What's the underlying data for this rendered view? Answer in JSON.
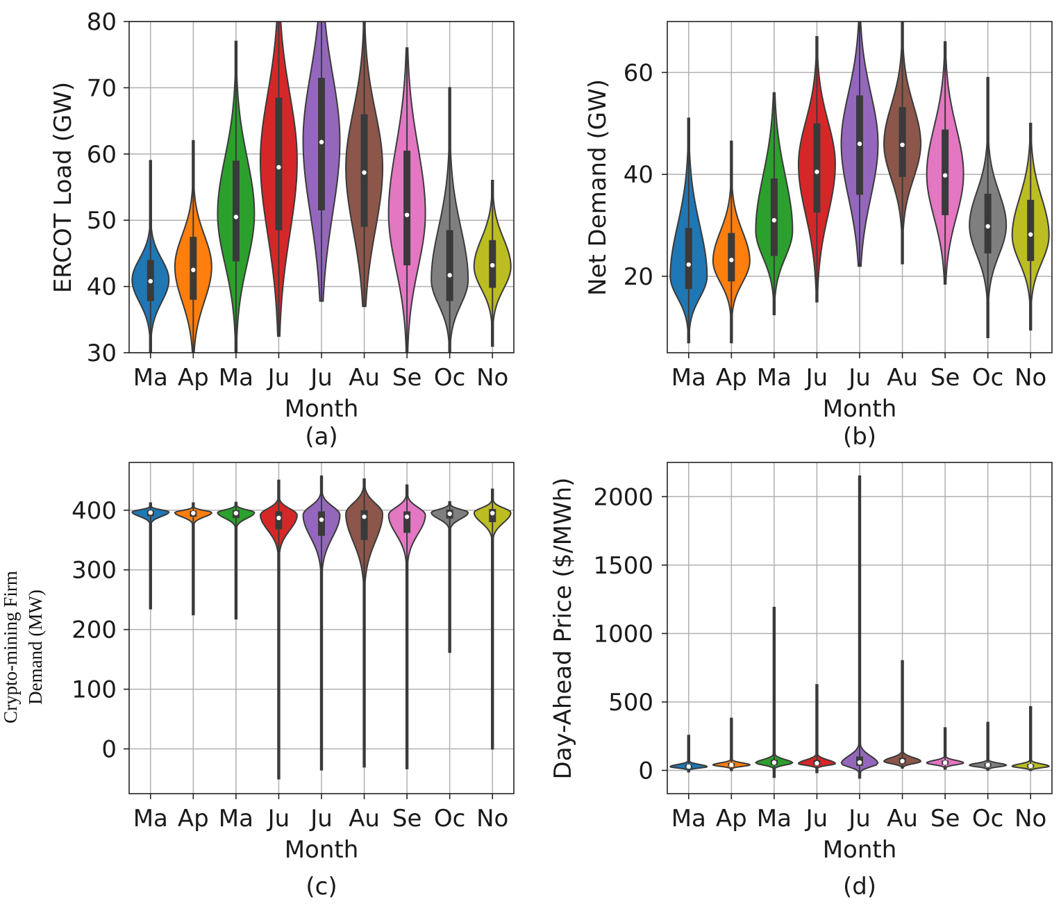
{
  "chart_data": [
    {
      "type": "violin",
      "caption": "(a)",
      "xlabel": "Month",
      "ylabel": "ERCOT Load (GW)",
      "categories": [
        "Ma",
        "Ap",
        "Ma",
        "Ju",
        "Ju",
        "Au",
        "Se",
        "Oc",
        "No"
      ],
      "ylim": [
        30,
        80
      ],
      "yticks": [
        30,
        40,
        50,
        60,
        70,
        80
      ],
      "grid": true,
      "series": [
        {
          "label": "Ma",
          "color": "#1f77b4",
          "min": 29,
          "q1": 37.8,
          "median": 40.8,
          "q3": 44.0,
          "max": 59,
          "mode": 41
        },
        {
          "label": "Ap",
          "color": "#ff7f0e",
          "min": 30,
          "q1": 38.0,
          "median": 42.5,
          "q3": 47.5,
          "max": 62,
          "mode": 43
        },
        {
          "label": "Ma",
          "color": "#2ca02c",
          "min": 30,
          "q1": 43.8,
          "median": 50.5,
          "q3": 59.0,
          "max": 77,
          "mode": 51
        },
        {
          "label": "Ju",
          "color": "#d62728",
          "min": 32.5,
          "q1": 48.5,
          "median": 58.0,
          "q3": 68.5,
          "max": 80,
          "mode": 59
        },
        {
          "label": "Ju",
          "color": "#9467bd",
          "min": 37.8,
          "q1": 51.5,
          "median": 61.8,
          "q3": 71.5,
          "max": 80,
          "mode": 62
        },
        {
          "label": "Au",
          "color": "#8c564b",
          "min": 37,
          "q1": 49.0,
          "median": 57.2,
          "q3": 66.0,
          "max": 80,
          "mode": 58
        },
        {
          "label": "Se",
          "color": "#e377c2",
          "min": 30,
          "q1": 43.2,
          "median": 50.8,
          "q3": 60.5,
          "max": 76,
          "mode": 51
        },
        {
          "label": "Oc",
          "color": "#7f7f7f",
          "min": 29,
          "q1": 37.8,
          "median": 41.7,
          "q3": 48.5,
          "max": 70,
          "mode": 41
        },
        {
          "label": "No",
          "color": "#bcbd22",
          "min": 31,
          "q1": 39.8,
          "median": 43.2,
          "q3": 47.0,
          "max": 56,
          "mode": 43
        }
      ]
    },
    {
      "type": "violin",
      "caption": "(b)",
      "xlabel": "Month",
      "ylabel": "Net Demand (GW)",
      "categories": [
        "Ma",
        "Ap",
        "Ma",
        "Ju",
        "Ju",
        "Au",
        "Se",
        "Oc",
        "No"
      ],
      "ylim": [
        5,
        70
      ],
      "yticks": [
        20,
        40,
        60
      ],
      "grid": true,
      "series": [
        {
          "label": "Ma",
          "color": "#1f77b4",
          "min": 7,
          "q1": 17.5,
          "median": 22.3,
          "q3": 29.5,
          "max": 51,
          "mode": 20
        },
        {
          "label": "Ap",
          "color": "#ff7f0e",
          "min": 7,
          "q1": 19.0,
          "median": 23.2,
          "q3": 28.5,
          "max": 46.5,
          "mode": 23
        },
        {
          "label": "Ma",
          "color": "#2ca02c",
          "min": 12.5,
          "q1": 24.0,
          "median": 31.0,
          "q3": 39.2,
          "max": 56,
          "mode": 29
        },
        {
          "label": "Ju",
          "color": "#d62728",
          "min": 15,
          "q1": 32.5,
          "median": 40.5,
          "q3": 50.0,
          "max": 67,
          "mode": 42
        },
        {
          "label": "Ju",
          "color": "#9467bd",
          "min": 22,
          "q1": 36.0,
          "median": 46.0,
          "q3": 55.5,
          "max": 70,
          "mode": 46
        },
        {
          "label": "Au",
          "color": "#8c564b",
          "min": 22.5,
          "q1": 39.5,
          "median": 45.8,
          "q3": 53.2,
          "max": 70,
          "mode": 46
        },
        {
          "label": "Se",
          "color": "#e377c2",
          "min": 18.5,
          "q1": 32.0,
          "median": 39.8,
          "q3": 48.8,
          "max": 66,
          "mode": 40
        },
        {
          "label": "Oc",
          "color": "#7f7f7f",
          "min": 8,
          "q1": 24.5,
          "median": 29.8,
          "q3": 36.2,
          "max": 59,
          "mode": 30
        },
        {
          "label": "No",
          "color": "#bcbd22",
          "min": 9.5,
          "q1": 23.0,
          "median": 28.2,
          "q3": 35.0,
          "max": 50,
          "mode": 28
        }
      ]
    },
    {
      "type": "violin",
      "caption": "(c)",
      "xlabel": "Month",
      "ylabel_lines": [
        "Crypto-mining Firm",
        "Demand (MW)"
      ],
      "categories": [
        "Ma",
        "Ap",
        "Ma",
        "Ju",
        "Ju",
        "Au",
        "Se",
        "Oc",
        "No"
      ],
      "ylim": [
        -75,
        480
      ],
      "yticks": [
        0,
        100,
        200,
        300,
        400
      ],
      "grid": true,
      "series": [
        {
          "label": "Ma",
          "color": "#1f77b4",
          "min": 235,
          "q1": 390,
          "median": 396,
          "q3": 400,
          "max": 412,
          "mode": 397
        },
        {
          "label": "Ap",
          "color": "#ff7f0e",
          "min": 225,
          "q1": 389,
          "median": 395,
          "q3": 399,
          "max": 412,
          "mode": 396
        },
        {
          "label": "Ma",
          "color": "#2ca02c",
          "min": 218,
          "q1": 387,
          "median": 395,
          "q3": 400,
          "max": 413,
          "mode": 396
        },
        {
          "label": "Ju",
          "color": "#d62728",
          "min": -50,
          "q1": 368,
          "median": 387,
          "q3": 398,
          "max": 450,
          "mode": 392
        },
        {
          "label": "Ju",
          "color": "#9467bd",
          "min": -35,
          "q1": 357,
          "median": 384,
          "q3": 398,
          "max": 457,
          "mode": 392
        },
        {
          "label": "Au",
          "color": "#8c564b",
          "min": -30,
          "q1": 350,
          "median": 389,
          "q3": 400,
          "max": 452,
          "mode": 394
        },
        {
          "label": "Se",
          "color": "#e377c2",
          "min": -33,
          "q1": 362,
          "median": 389,
          "q3": 398,
          "max": 442,
          "mode": 392
        },
        {
          "label": "Oc",
          "color": "#7f7f7f",
          "min": 162,
          "q1": 386,
          "median": 394,
          "q3": 401,
          "max": 414,
          "mode": 396
        },
        {
          "label": "No",
          "color": "#bcbd22",
          "min": 0,
          "q1": 380,
          "median": 395,
          "q3": 402,
          "max": 435,
          "mode": 396
        }
      ]
    },
    {
      "type": "violin",
      "caption": "(d)",
      "xlabel": "Month",
      "ylabel": "Day-Ahead Price ($/MWh)",
      "categories": [
        "Ma",
        "Ap",
        "Ma",
        "Ju",
        "Ju",
        "Au",
        "Se",
        "Oc",
        "No"
      ],
      "ylim": [
        -170,
        2250
      ],
      "yticks": [
        0,
        500,
        1000,
        1500,
        2000
      ],
      "grid": true,
      "series": [
        {
          "label": "Ma",
          "color": "#1f77b4",
          "min": -10,
          "q1": 18,
          "median": 28,
          "q3": 42,
          "max": 255,
          "mode": 27
        },
        {
          "label": "Ap",
          "color": "#ff7f0e",
          "min": 0,
          "q1": 30,
          "median": 40,
          "q3": 54,
          "max": 380,
          "mode": 40
        },
        {
          "label": "Ma",
          "color": "#2ca02c",
          "min": -50,
          "q1": 40,
          "median": 57,
          "q3": 78,
          "max": 1190,
          "mode": 55
        },
        {
          "label": "Ju",
          "color": "#d62728",
          "min": -15,
          "q1": 38,
          "median": 52,
          "q3": 75,
          "max": 625,
          "mode": 50
        },
        {
          "label": "Ju",
          "color": "#9467bd",
          "min": -55,
          "q1": 33,
          "median": 58,
          "q3": 102,
          "max": 2150,
          "mode": 50
        },
        {
          "label": "Au",
          "color": "#8c564b",
          "min": 18,
          "q1": 50,
          "median": 68,
          "q3": 92,
          "max": 800,
          "mode": 66
        },
        {
          "label": "Se",
          "color": "#e377c2",
          "min": 10,
          "q1": 42,
          "median": 56,
          "q3": 72,
          "max": 310,
          "mode": 55
        },
        {
          "label": "Oc",
          "color": "#7f7f7f",
          "min": 2,
          "q1": 27,
          "median": 40,
          "q3": 52,
          "max": 350,
          "mode": 38
        },
        {
          "label": "No",
          "color": "#bcbd22",
          "min": 0,
          "q1": 20,
          "median": 32,
          "q3": 46,
          "max": 465,
          "mode": 30
        }
      ]
    }
  ]
}
